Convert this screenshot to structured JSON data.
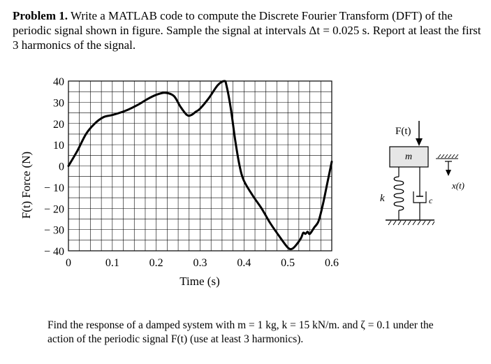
{
  "problem": {
    "label": "Problem 1.",
    "text": "Write a MATLAB code to compute the Discrete Fourier Transform (DFT) of the periodic signal shown in figure. Sample the signal at intervals Δt = 0.025 s. Report at least the first 3 harmonics of the signal."
  },
  "chart_data": {
    "type": "line",
    "xlabel": "Time (s)",
    "ylabel": "F(t)  Force (N)",
    "xlim": [
      0,
      0.6
    ],
    "ylim": [
      -40,
      40
    ],
    "x_ticks": [
      "0",
      "0.1",
      "0.2",
      "0.3",
      "0.4",
      "0.5",
      "0.6"
    ],
    "y_ticks": [
      "40",
      "30",
      "20",
      "10",
      "0",
      "− 10",
      "− 20",
      "− 30",
      "− 40"
    ],
    "grid": true,
    "series": [
      {
        "x": [
          0,
          0.02,
          0.04,
          0.06,
          0.08,
          0.1,
          0.13,
          0.16,
          0.18,
          0.2,
          0.22,
          0.24,
          0.255,
          0.27,
          0.28,
          0.29,
          0.3,
          0.32,
          0.34,
          0.355,
          0.36,
          0.37,
          0.38,
          0.39,
          0.4,
          0.42,
          0.44,
          0.46,
          0.48,
          0.5,
          0.51,
          0.52,
          0.53,
          0.535,
          0.54,
          0.545,
          0.55,
          0.56,
          0.57,
          0.58,
          0.59,
          0.6
        ],
        "y": [
          0,
          7,
          15,
          20,
          23,
          24,
          26,
          29,
          31.5,
          33.5,
          34.5,
          33,
          28,
          24,
          24,
          25.5,
          27,
          32,
          38,
          40,
          38,
          27,
          12,
          0,
          -7,
          -14,
          -20,
          -27,
          -33,
          -38.5,
          -39,
          -37,
          -34,
          -31.5,
          -32,
          -31,
          -32,
          -29,
          -26,
          -18,
          -8,
          2
        ]
      }
    ]
  },
  "diagram": {
    "force_label": "F(t)",
    "mass_label": "m",
    "spring_label": "k",
    "damper_label": "c",
    "displacement_label": "x(t)"
  },
  "footer": {
    "line1": "Find the response of a damped system with m  = 1 kg, k  = 15 kN/m. and ζ  = 0.1 under the",
    "line2": "action of the periodic signal F(t) (use at least 3 harmonics)."
  }
}
